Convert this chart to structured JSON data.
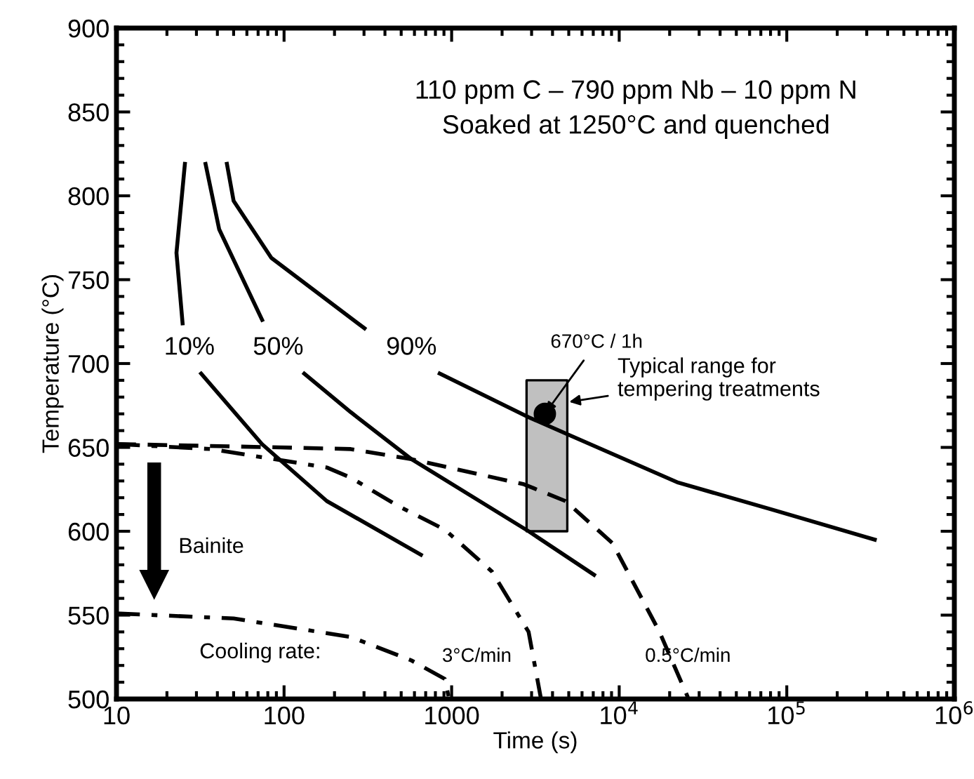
{
  "chart_data": {
    "type": "line",
    "xlabel": "Time (s)",
    "ylabel": "Temperature (°C)",
    "log": "x",
    "xlim": [
      10,
      1000000
    ],
    "xticks": [
      10,
      100,
      1000,
      {
        "value": 10000,
        "label": "10$^{4}$"
      },
      {
        "value": 100000,
        "label": "10$^{5}$"
      },
      {
        "value": 1000000,
        "label": "10$^{6}$"
      }
    ],
    "ylim": [
      500,
      900
    ],
    "yticks": [
      500,
      550,
      600,
      650,
      700,
      750,
      800,
      850,
      900
    ],
    "grid": false,
    "legend": false,
    "series": [
      {
        "color": "#000000",
        "line_style": "solid",
        "x": [
          25.6,
          22.8,
          24.8,
          28,
          32,
          73.8,
          180,
          656
        ],
        "values": [
          819,
          766,
          724,
          null,
          694,
          652,
          618,
          586
        ]
      },
      {
        "color": "#000000",
        "line_style": "solid",
        "x": [
          34,
          41,
          74,
          100,
          132,
          250,
          575,
          2880,
          7080
        ],
        "values": [
          819,
          780,
          726,
          null,
          694,
          671,
          643,
          600,
          574
        ]
      },
      {
        "color": "#000000",
        "line_style": "solid",
        "x": [
          45.6,
          50,
          84,
          302,
          500,
          849,
          2880,
          5130,
          22500,
          81000,
          335000
        ],
        "values": [
          819,
          797,
          763,
          721,
          null,
          694,
          668,
          657,
          629,
          613,
          595
        ]
      },
      {
        "color": "#000000",
        "line_style": "dashed",
        "x": [
          10,
          95,
          250,
          575,
          2700,
          4780,
          9100,
          17400,
          25700
        ],
        "values": [
          652,
          650,
          649,
          643,
          628,
          618,
          593,
          540,
          501
        ]
      },
      {
        "color": "#000000",
        "line_style": "dashdot",
        "x": [
          10,
          36.5,
          180,
          250,
          480,
          910,
          1740,
          2880,
          3400
        ],
        "values": [
          652,
          649,
          638,
          632,
          615,
          601,
          576,
          540,
          501
        ]
      },
      {
        "color": "#000000",
        "line_style": "dashdot",
        "x": [
          10,
          50,
          250,
          575,
          910,
          966
        ],
        "values": [
          551,
          548,
          537,
          523,
          512,
          500
        ]
      },
      {
        "type": "area",
        "color": "#c0c0c0",
        "x": [
          2800,
          4900
        ],
        "lower": [
          600,
          600
        ],
        "upper": [
          690,
          690
        ],
        "values": [
          null,
          null
        ]
      },
      {
        "type": "scatter",
        "color": "#000000",
        "marker": "circle",
        "x": [
          3600
        ],
        "values": [
          670
        ]
      }
    ],
    "annotations": [
      "10%",
      "50%",
      "90%",
      "3°C/min",
      "0.5°C/min",
      {
        "text": "670°C / 1h",
        "x": 3600,
        "y": 670
      },
      "110 ppm C – 790 ppm Nb – 10 ppm N",
      "Soaked at 1250°C and quenched",
      {
        "text": "Typical range for\ntempering treatments",
        "x": 4900,
        "y": 677
      },
      "Bainite",
      "Cooling rate:"
    ]
  }
}
